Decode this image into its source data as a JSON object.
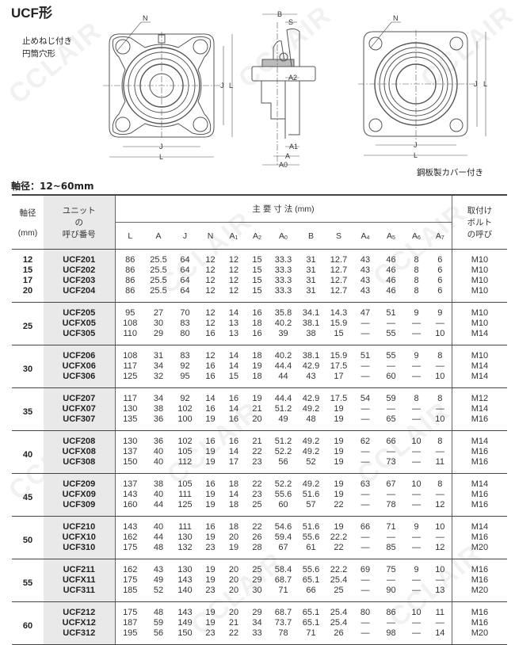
{
  "title": "UCF形",
  "subtitle_lines": [
    "止めねじ付き",
    "円筒穴形"
  ],
  "shaft_range": "軸径：12~60mm",
  "cover_caption": "鋼板製カバー付き",
  "watermark": "CCLAIR",
  "figure_labels": {
    "N": "N",
    "J": "J",
    "L": "L",
    "B": "B",
    "S": "S",
    "A2": "A2",
    "A1": "A1",
    "A": "A",
    "A0": "A0"
  },
  "table": {
    "header": {
      "shaft_line1": "軸径",
      "shaft_line2": "(mm)",
      "unit_line1": "ユニット",
      "unit_line2": "の",
      "unit_line3": "呼び番号",
      "dims_title": "主 要 寸 法 (mm)",
      "dims": [
        {
          "base": "L",
          "sub": ""
        },
        {
          "base": "A",
          "sub": ""
        },
        {
          "base": "J",
          "sub": ""
        },
        {
          "base": "N",
          "sub": ""
        },
        {
          "base": "A",
          "sub": "1"
        },
        {
          "base": "A",
          "sub": "2"
        },
        {
          "base": "A",
          "sub": "0"
        },
        {
          "base": "B",
          "sub": ""
        },
        {
          "base": "S",
          "sub": ""
        },
        {
          "base": "A",
          "sub": "4"
        },
        {
          "base": "A",
          "sub": "5"
        },
        {
          "base": "A",
          "sub": "6"
        },
        {
          "base": "A",
          "sub": "7"
        }
      ],
      "bolt_line1": "取付け",
      "bolt_line2": "ボルト",
      "bolt_line3": "の呼び"
    },
    "groups": [
      {
        "shafts": [
          "12",
          "15",
          "17",
          "20"
        ],
        "rows": [
          {
            "model": "UCF201",
            "dims": [
              "86",
              "25.5",
              "64",
              "12",
              "12",
              "15",
              "33.3",
              "31",
              "12.7",
              "43",
              "46",
              "8",
              "6"
            ],
            "bolt": "M10"
          },
          {
            "model": "UCF202",
            "dims": [
              "86",
              "25.5",
              "64",
              "12",
              "12",
              "15",
              "33.3",
              "31",
              "12.7",
              "43",
              "46",
              "8",
              "6"
            ],
            "bolt": "M10"
          },
          {
            "model": "UCF203",
            "dims": [
              "86",
              "25.5",
              "64",
              "12",
              "12",
              "15",
              "33.3",
              "31",
              "12.7",
              "43",
              "46",
              "8",
              "6"
            ],
            "bolt": "M10"
          },
          {
            "model": "UCF204",
            "dims": [
              "86",
              "25.5",
              "64",
              "12",
              "12",
              "15",
              "33.3",
              "31",
              "12.7",
              "43",
              "46",
              "8",
              "6"
            ],
            "bolt": "M10"
          }
        ]
      },
      {
        "shafts": [
          "25"
        ],
        "rows": [
          {
            "model": "UCF205",
            "dims": [
              "95",
              "27",
              "70",
              "12",
              "14",
              "16",
              "35.8",
              "34.1",
              "14.3",
              "47",
              "51",
              "9",
              "9"
            ],
            "bolt": "M10"
          },
          {
            "model": "UCFX05",
            "dims": [
              "108",
              "30",
              "83",
              "12",
              "13",
              "18",
              "40.2",
              "38.1",
              "15.9",
              "—",
              "—",
              "—",
              "—"
            ],
            "bolt": "M10"
          },
          {
            "model": "UCF305",
            "dims": [
              "110",
              "29",
              "80",
              "16",
              "13",
              "16",
              "39",
              "38",
              "15",
              "—",
              "55",
              "—",
              "10"
            ],
            "bolt": "M14"
          }
        ]
      },
      {
        "shafts": [
          "30"
        ],
        "rows": [
          {
            "model": "UCF206",
            "dims": [
              "108",
              "31",
              "83",
              "12",
              "14",
              "18",
              "40.2",
              "38.1",
              "15.9",
              "51",
              "55",
              "9",
              "8"
            ],
            "bolt": "M10"
          },
          {
            "model": "UCFX06",
            "dims": [
              "117",
              "34",
              "92",
              "16",
              "14",
              "19",
              "44.4",
              "42.9",
              "17.5",
              "—",
              "—",
              "—",
              "—"
            ],
            "bolt": "M14"
          },
          {
            "model": "UCF306",
            "dims": [
              "125",
              "32",
              "95",
              "16",
              "15",
              "18",
              "44",
              "43",
              "17",
              "—",
              "60",
              "—",
              "10"
            ],
            "bolt": "M14"
          }
        ]
      },
      {
        "shafts": [
          "35"
        ],
        "rows": [
          {
            "model": "UCF207",
            "dims": [
              "117",
              "34",
              "92",
              "14",
              "16",
              "19",
              "44.4",
              "42.9",
              "17.5",
              "54",
              "59",
              "8",
              "8"
            ],
            "bolt": "M12"
          },
          {
            "model": "UCFX07",
            "dims": [
              "130",
              "38",
              "102",
              "16",
              "14",
              "21",
              "51.2",
              "49.2",
              "19",
              "—",
              "—",
              "—",
              "—"
            ],
            "bolt": "M14"
          },
          {
            "model": "UCF307",
            "dims": [
              "135",
              "36",
              "100",
              "19",
              "16",
              "20",
              "49",
              "48",
              "19",
              "—",
              "65",
              "—",
              "10"
            ],
            "bolt": "M16"
          }
        ]
      },
      {
        "shafts": [
          "40"
        ],
        "rows": [
          {
            "model": "UCF208",
            "dims": [
              "130",
              "36",
              "102",
              "16",
              "16",
              "21",
              "51.2",
              "49.2",
              "19",
              "62",
              "66",
              "10",
              "8"
            ],
            "bolt": "M14"
          },
          {
            "model": "UCFX08",
            "dims": [
              "137",
              "40",
              "105",
              "19",
              "14",
              "22",
              "52.2",
              "49.2",
              "19",
              "—",
              "—",
              "—",
              "—"
            ],
            "bolt": "M16"
          },
          {
            "model": "UCF308",
            "dims": [
              "150",
              "40",
              "112",
              "19",
              "17",
              "23",
              "56",
              "52",
              "19",
              "—",
              "73",
              "—",
              "11"
            ],
            "bolt": "M16"
          }
        ]
      },
      {
        "shafts": [
          "45"
        ],
        "rows": [
          {
            "model": "UCF209",
            "dims": [
              "137",
              "38",
              "105",
              "16",
              "18",
              "22",
              "52.2",
              "49.2",
              "19",
              "63",
              "67",
              "10",
              "8"
            ],
            "bolt": "M14"
          },
          {
            "model": "UCFX09",
            "dims": [
              "143",
              "40",
              "111",
              "19",
              "14",
              "23",
              "55.6",
              "51.6",
              "19",
              "—",
              "—",
              "—",
              "—"
            ],
            "bolt": "M16"
          },
          {
            "model": "UCF309",
            "dims": [
              "160",
              "44",
              "125",
              "19",
              "18",
              "25",
              "60",
              "57",
              "22",
              "—",
              "78",
              "—",
              "12"
            ],
            "bolt": "M16"
          }
        ]
      },
      {
        "shafts": [
          "50"
        ],
        "rows": [
          {
            "model": "UCF210",
            "dims": [
              "143",
              "40",
              "111",
              "16",
              "18",
              "22",
              "54.6",
              "51.6",
              "19",
              "66",
              "71",
              "9",
              "10"
            ],
            "bolt": "M14"
          },
          {
            "model": "UCFX10",
            "dims": [
              "162",
              "44",
              "130",
              "19",
              "20",
              "26",
              "59.4",
              "55.6",
              "22.2",
              "—",
              "—",
              "—",
              "—"
            ],
            "bolt": "M16"
          },
          {
            "model": "UCF310",
            "dims": [
              "175",
              "48",
              "132",
              "23",
              "19",
              "28",
              "67",
              "61",
              "22",
              "—",
              "85",
              "—",
              "12"
            ],
            "bolt": "M20"
          }
        ]
      },
      {
        "shafts": [
          "55"
        ],
        "rows": [
          {
            "model": "UCF211",
            "dims": [
              "162",
              "43",
              "130",
              "19",
              "20",
              "25",
              "58.4",
              "55.6",
              "22.2",
              "69",
              "75",
              "9",
              "10"
            ],
            "bolt": "M16"
          },
          {
            "model": "UCFX11",
            "dims": [
              "175",
              "49",
              "143",
              "19",
              "20",
              "29",
              "68.7",
              "65.1",
              "25.4",
              "—",
              "—",
              "—",
              "—"
            ],
            "bolt": "M16"
          },
          {
            "model": "UCF311",
            "dims": [
              "185",
              "52",
              "140",
              "23",
              "20",
              "30",
              "71",
              "66",
              "25",
              "—",
              "90",
              "—",
              "13"
            ],
            "bolt": "M20"
          }
        ]
      },
      {
        "shafts": [
          "60"
        ],
        "rows": [
          {
            "model": "UCF212",
            "dims": [
              "175",
              "48",
              "143",
              "19",
              "20",
              "29",
              "68.7",
              "65.1",
              "25.4",
              "80",
              "86",
              "10",
              "11"
            ],
            "bolt": "M16"
          },
          {
            "model": "UCFX12",
            "dims": [
              "187",
              "59",
              "149",
              "19",
              "21",
              "34",
              "73.7",
              "65.1",
              "25.4",
              "—",
              "—",
              "—",
              "—"
            ],
            "bolt": "M16"
          },
          {
            "model": "UCF312",
            "dims": [
              "195",
              "56",
              "150",
              "23",
              "22",
              "33",
              "78",
              "71",
              "26",
              "—",
              "98",
              "—",
              "14"
            ],
            "bolt": "M20"
          }
        ]
      }
    ]
  }
}
